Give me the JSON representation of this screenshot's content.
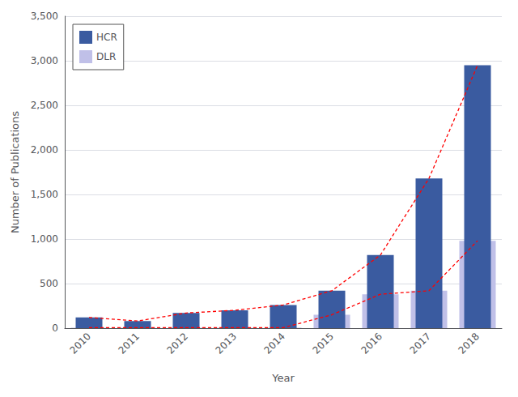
{
  "chart_data": {
    "type": "bar",
    "categories": [
      "2010",
      "2011",
      "2012",
      "2013",
      "2014",
      "2015",
      "2016",
      "2017",
      "2018"
    ],
    "series": [
      {
        "name": "HCR",
        "color": "#3A5BA0",
        "values": [
          120,
          80,
          170,
          200,
          260,
          420,
          820,
          1680,
          2950
        ]
      },
      {
        "name": "DLR",
        "color": "#C0C0E8",
        "values": [
          5,
          5,
          5,
          5,
          5,
          150,
          380,
          420,
          980
        ]
      },
      {
        "type": "line",
        "color": "red",
        "line_style": "dashed",
        "values": [
          120,
          80,
          170,
          200,
          260,
          420,
          820,
          1680,
          2950
        ]
      },
      {
        "type": "line",
        "color": "red",
        "line_style": "dashed",
        "values": [
          5,
          5,
          5,
          5,
          5,
          150,
          380,
          420,
          980
        ]
      }
    ],
    "xlabel": "Year",
    "ylabel": "Number of Publications",
    "ylim": [
      0,
      3500
    ],
    "yticks": [
      0,
      500,
      {
        "value": 1000,
        "label": "1,000"
      },
      {
        "value": 1500,
        "label": "1,500"
      },
      {
        "value": 2000,
        "label": "2,000"
      },
      {
        "value": 2500,
        "label": "2,500"
      },
      {
        "value": 3000,
        "label": "3,000"
      },
      {
        "value": 3500,
        "label": "3,500"
      }
    ],
    "grid": true,
    "legend": "upper left"
  }
}
